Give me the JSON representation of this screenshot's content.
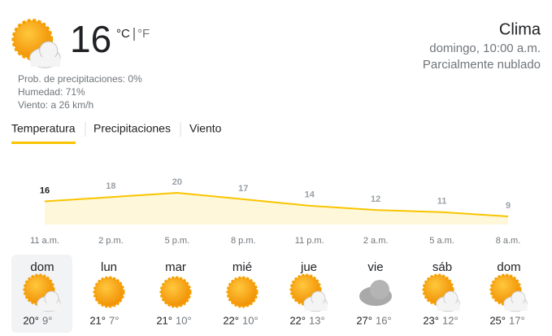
{
  "current": {
    "temperature": "16",
    "unit_c": "°C",
    "unit_f": "°F",
    "precipitation": "Prob. de precipitaciones: 0%",
    "humidity": "Humedad: 71%",
    "wind": "Viento: a 26 km/h"
  },
  "header": {
    "title": "Clima",
    "time": "domingo, 10:00 a.m.",
    "condition": "Parcialmente nublado"
  },
  "tabs": [
    "Temperatura",
    "Precipitaciones",
    "Viento"
  ],
  "chart_data": {
    "type": "area",
    "categories": [
      "11 a.m.",
      "2 p.m.",
      "5 p.m.",
      "8 p.m.",
      "11 p.m.",
      "2 a.m.",
      "5 a.m.",
      "8 a.m."
    ],
    "values": [
      16,
      18,
      20,
      17,
      14,
      12,
      11,
      9
    ],
    "color": "#f9c500"
  },
  "days": [
    {
      "name": "dom",
      "high": "20°",
      "low": "9°"
    },
    {
      "name": "lun",
      "high": "21°",
      "low": "7°"
    },
    {
      "name": "mar",
      "high": "21°",
      "low": "10°"
    },
    {
      "name": "mié",
      "high": "22°",
      "low": "10°"
    },
    {
      "name": "jue",
      "high": "22°",
      "low": "13°"
    },
    {
      "name": "vie",
      "high": "27°",
      "low": "16°"
    },
    {
      "name": "sáb",
      "high": "23°",
      "low": "12°"
    },
    {
      "name": "dom",
      "high": "25°",
      "low": "17°"
    }
  ]
}
